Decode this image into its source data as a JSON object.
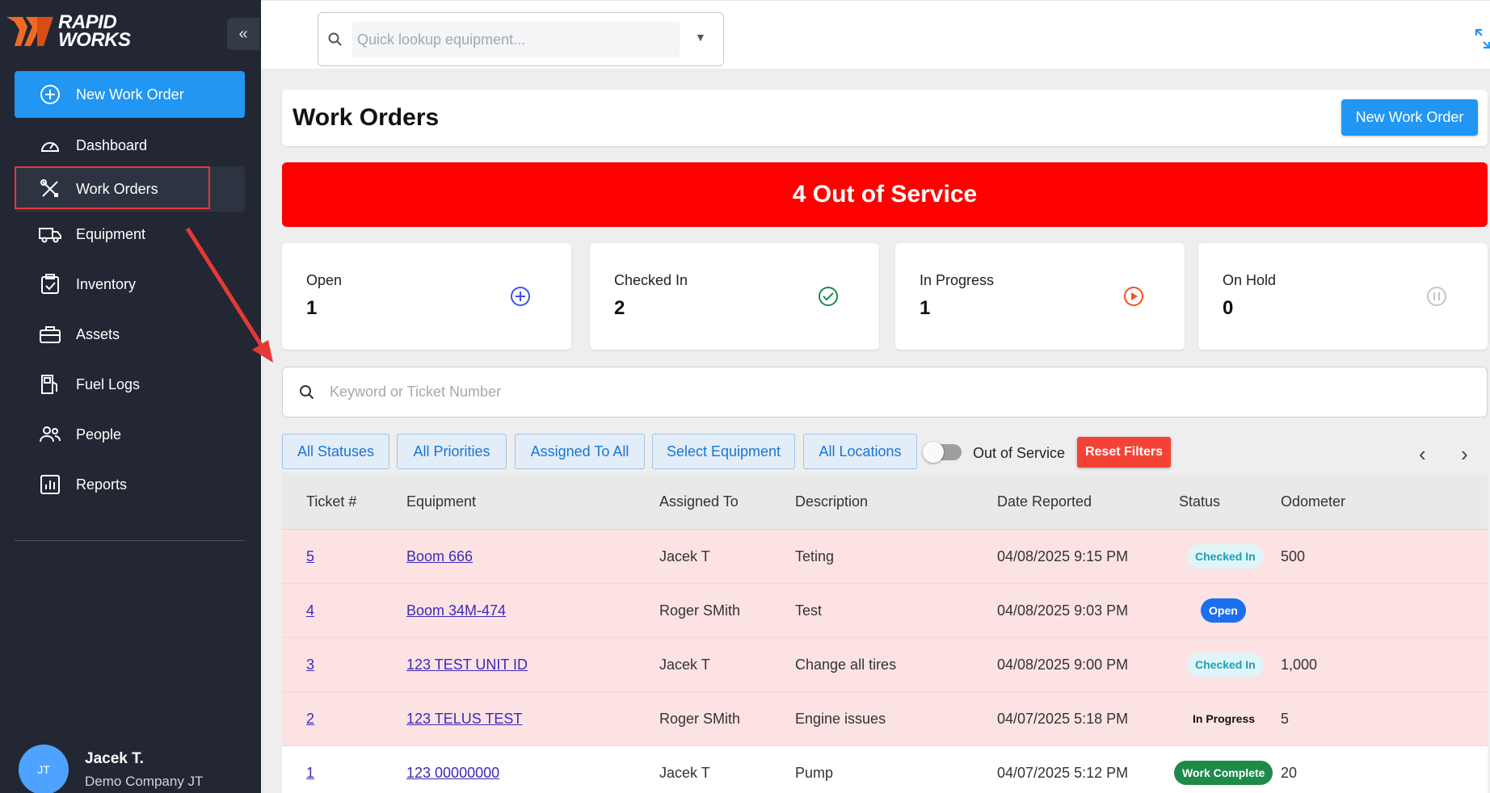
{
  "brand": {
    "line1": "RAPID",
    "line2": "WORKS",
    "collapse": "«"
  },
  "sidebar": {
    "primary": {
      "label": "New Work Order"
    },
    "items": [
      {
        "label": "Dashboard"
      },
      {
        "label": "Work Orders"
      },
      {
        "label": "Equipment"
      },
      {
        "label": "Inventory"
      },
      {
        "label": "Assets"
      },
      {
        "label": "Fuel Logs"
      },
      {
        "label": "People"
      },
      {
        "label": "Reports"
      }
    ],
    "user": {
      "initials": "JT",
      "name": "Jacek T.",
      "company": "Demo Company JT"
    }
  },
  "topbar": {
    "lookup_placeholder": "Quick lookup equipment..."
  },
  "header": {
    "title": "Work Orders",
    "new_button": "New Work Order"
  },
  "banner": {
    "text": "4 Out of Service",
    "color": "#ff0000"
  },
  "stats": [
    {
      "label": "Open",
      "count": "1"
    },
    {
      "label": "Checked In",
      "count": "2"
    },
    {
      "label": "In Progress",
      "count": "1"
    },
    {
      "label": "On Hold",
      "count": "0"
    }
  ],
  "search": {
    "placeholder": "Keyword or Ticket Number"
  },
  "filters": {
    "statuses": "All Statuses",
    "priorities": "All Priorities",
    "assigned": "Assigned To All",
    "equipment": "Select Equipment",
    "locations": "All Locations",
    "toggle_label": "Out of Service",
    "reset": "Reset Filters",
    "prev": "‹",
    "next": "›"
  },
  "table": {
    "columns": [
      "Ticket #",
      "Equipment",
      "Assigned To",
      "Description",
      "Date Reported",
      "Status",
      "Odometer"
    ],
    "rows": [
      {
        "ticket": "5",
        "equipment": "Boom 666",
        "assigned": "Jacek T",
        "description": "Teting",
        "date": "04/08/2025 9:15 PM",
        "status": "Checked In",
        "odometer": "500"
      },
      {
        "ticket": "4",
        "equipment": "Boom 34M-474",
        "assigned": "Roger SMith",
        "description": "Test",
        "date": "04/08/2025 9:03 PM",
        "status": "Open",
        "odometer": ""
      },
      {
        "ticket": "3",
        "equipment": "123 TEST UNIT ID",
        "assigned": "Jacek T",
        "description": "Change all tires",
        "date": "04/08/2025 9:00 PM",
        "status": "Checked In",
        "odometer": "1,000"
      },
      {
        "ticket": "2",
        "equipment": "123 TELUS TEST",
        "assigned": "Roger SMith",
        "description": "Engine issues",
        "date": "04/07/2025 5:18 PM",
        "status": "In Progress",
        "odometer": "5"
      },
      {
        "ticket": "1",
        "equipment": "123 00000000",
        "assigned": "Jacek T",
        "description": "Pump",
        "date": "04/07/2025 5:12 PM",
        "status": "Work Complete",
        "odometer": "20"
      }
    ]
  },
  "colors": {
    "accent": "#2196f3",
    "sidebar": "#222733",
    "danger": "#ff0000",
    "oos_row": "#fde2e4"
  }
}
